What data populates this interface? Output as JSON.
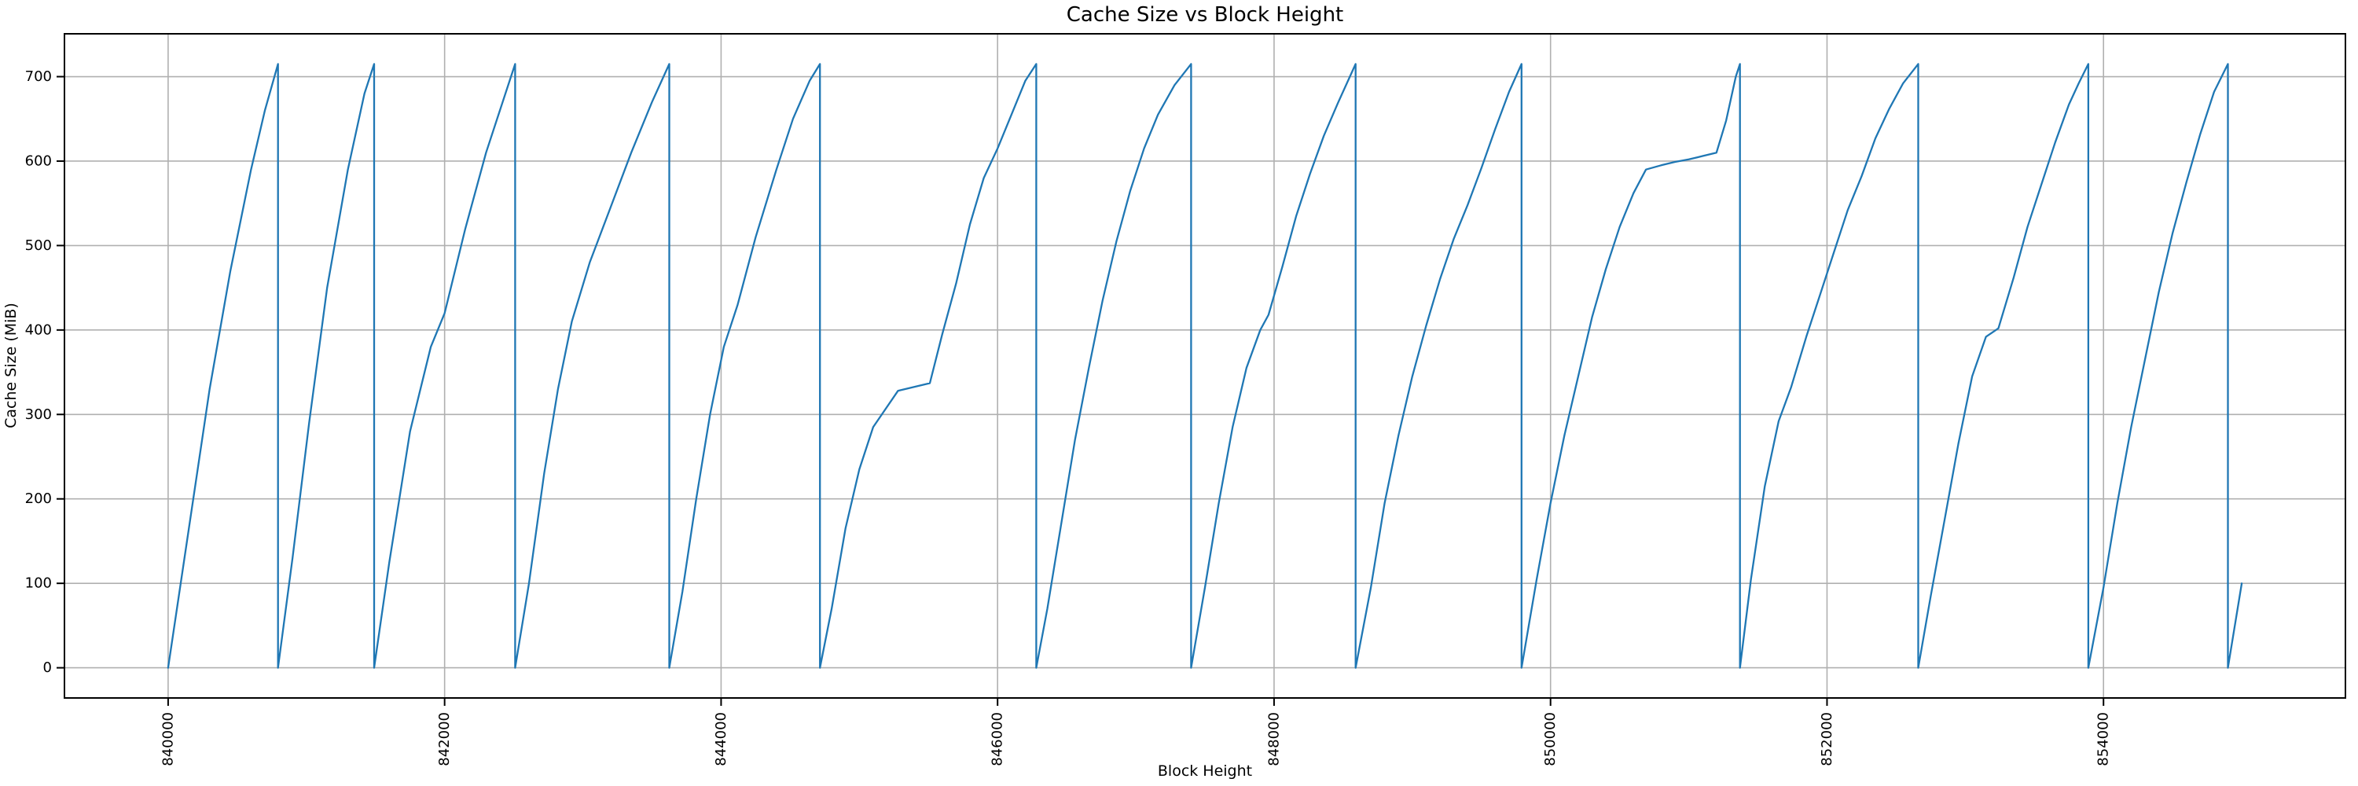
{
  "chart_data": {
    "type": "line",
    "title": "Cache Size vs Block Height",
    "xlabel": "Block Height",
    "ylabel": "Cache Size (MiB)",
    "xlim": [
      839250,
      855750
    ],
    "ylim": [
      -35.75,
      750.75
    ],
    "xticks": [
      840000,
      842000,
      844000,
      846000,
      848000,
      850000,
      852000,
      854000
    ],
    "xtick_labels": [
      "840000",
      "842000",
      "844000",
      "846000",
      "848000",
      "850000",
      "852000",
      "854000"
    ],
    "yticks": [
      0,
      100,
      200,
      300,
      400,
      500,
      600,
      700
    ],
    "ytick_labels": [
      "0",
      "100",
      "200",
      "300",
      "400",
      "500",
      "600",
      "700"
    ],
    "grid": true,
    "legend_position": "none",
    "line_color": "#1f77b4",
    "grid_color": "#b0b0b0",
    "spine_color": "#000000",
    "text_color": "#000000",
    "series": [
      {
        "name": "cache-size",
        "points": [
          [
            840000,
            0
          ],
          [
            840150,
            165
          ],
          [
            840300,
            330
          ],
          [
            840450,
            470
          ],
          [
            840600,
            590
          ],
          [
            840700,
            660
          ],
          [
            840795,
            715
          ],
          [
            840795,
            0
          ],
          [
            840900,
            130
          ],
          [
            841020,
            290
          ],
          [
            841150,
            450
          ],
          [
            841300,
            590
          ],
          [
            841420,
            680
          ],
          [
            841490,
            715
          ],
          [
            841490,
            0
          ],
          [
            841600,
            125
          ],
          [
            841750,
            280
          ],
          [
            841900,
            380
          ],
          [
            842000,
            420
          ],
          [
            842150,
            520
          ],
          [
            842300,
            610
          ],
          [
            842420,
            670
          ],
          [
            842510,
            715
          ],
          [
            842510,
            0
          ],
          [
            842610,
            100
          ],
          [
            842720,
            230
          ],
          [
            842820,
            330
          ],
          [
            842920,
            410
          ],
          [
            843050,
            480
          ],
          [
            843200,
            545
          ],
          [
            843350,
            610
          ],
          [
            843500,
            670
          ],
          [
            843625,
            715
          ],
          [
            843625,
            0
          ],
          [
            843720,
            90
          ],
          [
            843820,
            200
          ],
          [
            843920,
            300
          ],
          [
            844020,
            380
          ],
          [
            844120,
            430
          ],
          [
            844250,
            510
          ],
          [
            844400,
            590
          ],
          [
            844520,
            650
          ],
          [
            844640,
            695
          ],
          [
            844715,
            715
          ],
          [
            844715,
            0
          ],
          [
            844800,
            70
          ],
          [
            844900,
            165
          ],
          [
            845000,
            235
          ],
          [
            845100,
            285
          ],
          [
            845280,
            328
          ],
          [
            845510,
            337
          ],
          [
            845600,
            395
          ],
          [
            845700,
            455
          ],
          [
            845800,
            525
          ],
          [
            845900,
            580
          ],
          [
            846000,
            615
          ],
          [
            846100,
            655
          ],
          [
            846200,
            695
          ],
          [
            846280,
            715
          ],
          [
            846280,
            0
          ],
          [
            846360,
            70
          ],
          [
            846460,
            170
          ],
          [
            846560,
            270
          ],
          [
            846660,
            355
          ],
          [
            846760,
            435
          ],
          [
            846860,
            505
          ],
          [
            846960,
            565
          ],
          [
            847060,
            615
          ],
          [
            847160,
            655
          ],
          [
            847280,
            690
          ],
          [
            847400,
            715
          ],
          [
            847400,
            0
          ],
          [
            847500,
            95
          ],
          [
            847600,
            195
          ],
          [
            847700,
            285
          ],
          [
            847800,
            355
          ],
          [
            847900,
            400
          ],
          [
            847960,
            418
          ],
          [
            848060,
            475
          ],
          [
            848160,
            535
          ],
          [
            848260,
            585
          ],
          [
            848360,
            630
          ],
          [
            848460,
            668
          ],
          [
            848590,
            715
          ],
          [
            848590,
            0
          ],
          [
            848700,
            95
          ],
          [
            848800,
            195
          ],
          [
            848900,
            275
          ],
          [
            849000,
            345
          ],
          [
            849100,
            405
          ],
          [
            849200,
            460
          ],
          [
            849300,
            508
          ],
          [
            849400,
            548
          ],
          [
            849500,
            592
          ],
          [
            849600,
            638
          ],
          [
            849700,
            682
          ],
          [
            849790,
            715
          ],
          [
            849790,
            0
          ],
          [
            849900,
            105
          ],
          [
            850000,
            195
          ],
          [
            850100,
            275
          ],
          [
            850200,
            345
          ],
          [
            850300,
            415
          ],
          [
            850400,
            472
          ],
          [
            850500,
            522
          ],
          [
            850600,
            562
          ],
          [
            850690,
            590
          ],
          [
            850800,
            595
          ],
          [
            850900,
            599
          ],
          [
            851000,
            602
          ],
          [
            851100,
            606
          ],
          [
            851200,
            610
          ],
          [
            851270,
            648
          ],
          [
            851340,
            700
          ],
          [
            851370,
            715
          ],
          [
            851370,
            0
          ],
          [
            851450,
            105
          ],
          [
            851550,
            215
          ],
          [
            851650,
            292
          ],
          [
            851740,
            332
          ],
          [
            851850,
            392
          ],
          [
            851950,
            442
          ],
          [
            852050,
            492
          ],
          [
            852150,
            542
          ],
          [
            852250,
            582
          ],
          [
            852350,
            627
          ],
          [
            852450,
            662
          ],
          [
            852550,
            692
          ],
          [
            852660,
            715
          ],
          [
            852660,
            0
          ],
          [
            852750,
            85
          ],
          [
            852850,
            175
          ],
          [
            852950,
            265
          ],
          [
            853050,
            345
          ],
          [
            853150,
            392
          ],
          [
            853240,
            402
          ],
          [
            853350,
            462
          ],
          [
            853450,
            522
          ],
          [
            853550,
            572
          ],
          [
            853650,
            622
          ],
          [
            853750,
            667
          ],
          [
            853820,
            692
          ],
          [
            853890,
            715
          ],
          [
            853890,
            0
          ],
          [
            854000,
            95
          ],
          [
            854100,
            195
          ],
          [
            854200,
            285
          ],
          [
            854300,
            365
          ],
          [
            854400,
            445
          ],
          [
            854500,
            515
          ],
          [
            854600,
            575
          ],
          [
            854700,
            632
          ],
          [
            854800,
            682
          ],
          [
            854900,
            715
          ],
          [
            854900,
            0
          ],
          [
            855000,
            100
          ]
        ]
      }
    ]
  }
}
